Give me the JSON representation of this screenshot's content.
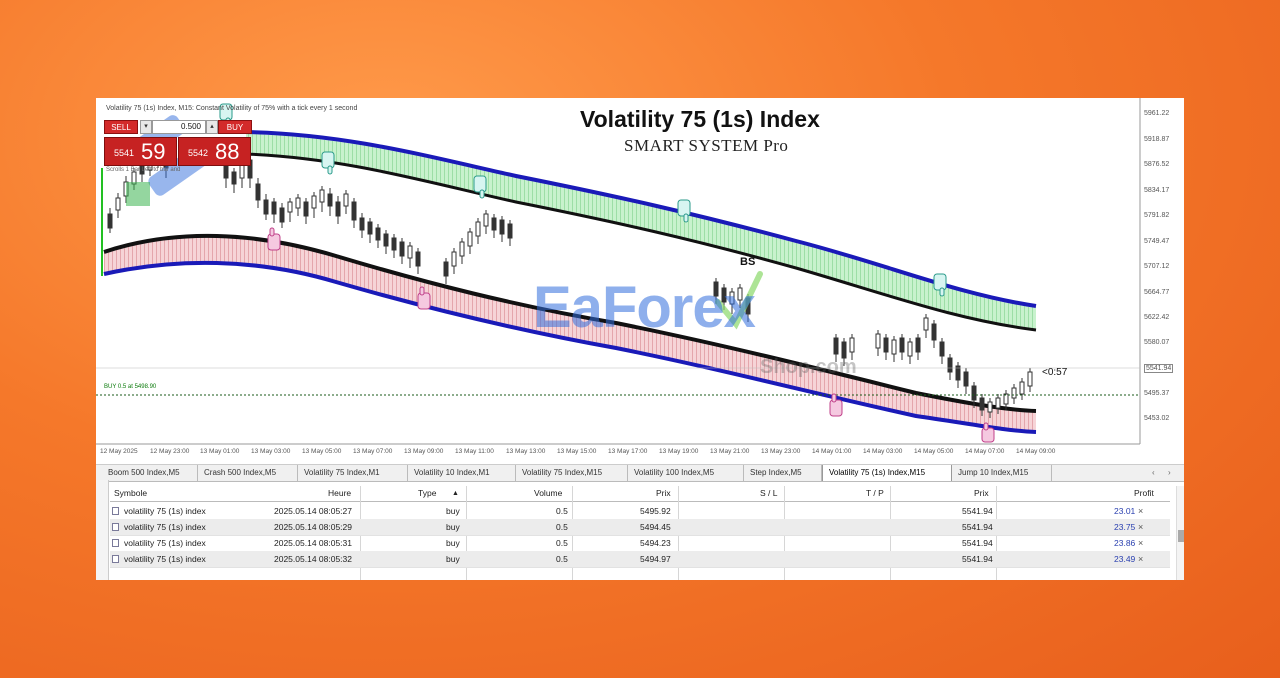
{
  "window": {
    "chart_title": "Volatility 75 (1s) Index, M15: Constant Volatility of 75% with a tick every 1 second"
  },
  "overlay": {
    "title": "Volatility 75 (1s) Index",
    "subtitle": "SMART SYSTEM Pro",
    "watermark": "EaForex",
    "watermark_sub": "Shop.com",
    "annotation_bs": "BS"
  },
  "trade_panel": {
    "sell_label": "SELL",
    "buy_label": "BUY",
    "lot": "0.500",
    "sell_price_small": "5541",
    "sell_price_large": "59",
    "buy_price_small": "5542",
    "buy_price_large": "88"
  },
  "chart": {
    "hint": "Scrolls 1 Bar Left to bar and",
    "order_line": "BUY 0.5 at 5498.90",
    "countdown": "<0:57",
    "price_axis": [
      "5961.22",
      "5918.87",
      "5876.52",
      "5834.17",
      "5791.82",
      "5749.47",
      "5707.12",
      "5664.77",
      "5622.42",
      "5580.07",
      "5541.94",
      "5495.37",
      "5453.02"
    ],
    "time_axis": [
      "12 May 2025",
      "12 May 23:00",
      "13 May 01:00",
      "13 May 03:00",
      "13 May 05:00",
      "13 May 07:00",
      "13 May 09:00",
      "13 May 11:00",
      "13 May 13:00",
      "13 May 15:00",
      "13 May 17:00",
      "13 May 19:00",
      "13 May 21:00",
      "13 May 23:00",
      "14 May 01:00",
      "14 May 03:00",
      "14 May 05:00",
      "14 May 07:00",
      "14 May 09:00"
    ]
  },
  "tabs": [
    {
      "label": "Boom 500 Index,M5"
    },
    {
      "label": "Crash 500 Index,M5"
    },
    {
      "label": "Volatility 75 Index,M1"
    },
    {
      "label": "Volatility 10 Index,M1"
    },
    {
      "label": "Volatility 75 Index,M15"
    },
    {
      "label": "Volatility 100 Index,M5"
    },
    {
      "label": "Step Index,M5"
    },
    {
      "label": "Volatility 75 (1s) Index,M15"
    },
    {
      "label": "Jump 10 Index,M15"
    }
  ],
  "table": {
    "headers": {
      "symbol": "Symbole",
      "time": "Heure",
      "type": "Type",
      "volume": "Volume",
      "price": "Prix",
      "sl": "S / L",
      "tp": "T / P",
      "price2": "Prix",
      "profit": "Profit"
    },
    "rows": [
      {
        "symbol": "volatility 75 (1s) index",
        "time": "2025.05.14 08:05:27",
        "type": "buy",
        "volume": "0.5",
        "price": "5495.92",
        "price2": "5541.94",
        "profit": "23.01"
      },
      {
        "symbol": "volatility 75 (1s) index",
        "time": "2025.05.14 08:05:29",
        "type": "buy",
        "volume": "0.5",
        "price": "5494.45",
        "price2": "5541.94",
        "profit": "23.75"
      },
      {
        "symbol": "volatility 75 (1s) index",
        "time": "2025.05.14 08:05:31",
        "type": "buy",
        "volume": "0.5",
        "price": "5494.23",
        "price2": "5541.94",
        "profit": "23.86"
      },
      {
        "symbol": "volatility 75 (1s) index",
        "time": "2025.05.14 08:05:32",
        "type": "buy",
        "volume": "0.5",
        "price": "5494.97",
        "price2": "5541.94",
        "profit": "23.49"
      }
    ]
  },
  "colors": {
    "sell_red": "#c62222",
    "upper_band_blue": "#1a1ab8",
    "mid_line_black": "#111111",
    "green_zone": "#9be3a5",
    "red_zone": "#e8a0a6",
    "profit_blue": "#2a40b0"
  }
}
